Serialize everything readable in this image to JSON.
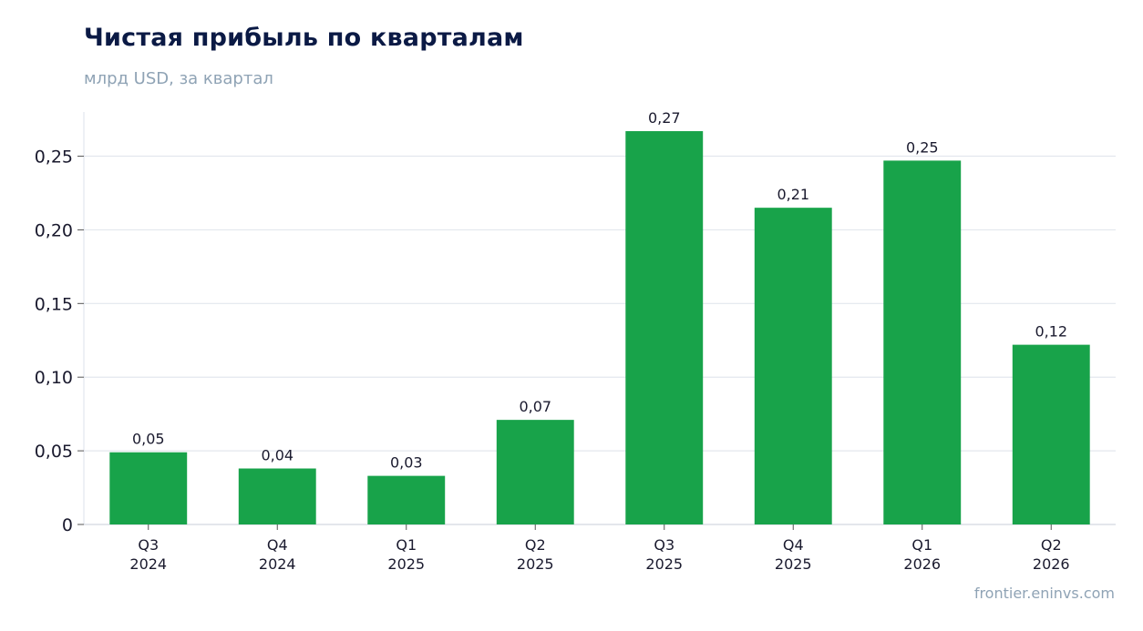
{
  "chart_data": {
    "type": "bar",
    "title": "Чистая прибыль по кварталам",
    "subtitle": "млрд USD, за квартал",
    "xlabel": "",
    "ylabel": "",
    "categories": [
      [
        "Q3",
        "2024"
      ],
      [
        "Q4",
        "2024"
      ],
      [
        "Q1",
        "2025"
      ],
      [
        "Q2",
        "2025"
      ],
      [
        "Q3",
        "2025"
      ],
      [
        "Q4",
        "2025"
      ],
      [
        "Q1",
        "2026"
      ],
      [
        "Q2",
        "2026"
      ]
    ],
    "values": [
      0.049,
      0.038,
      0.033,
      0.071,
      0.267,
      0.215,
      0.247,
      0.122
    ],
    "data_labels": [
      "0,05",
      "0,04",
      "0,03",
      "0,07",
      "0,27",
      "0,21",
      "0,25",
      "0,12"
    ],
    "ylim": [
      0,
      0.28
    ],
    "yticks": [
      0,
      0.05,
      0.1,
      0.15,
      0.2,
      0.25
    ],
    "ytick_labels": [
      "0",
      "0,05",
      "0,10",
      "0,15",
      "0,20",
      "0,25"
    ],
    "grid": "horizontal",
    "bar_color": "#18a34a",
    "legend": "none"
  },
  "source_text": "frontier.eninvs.com"
}
